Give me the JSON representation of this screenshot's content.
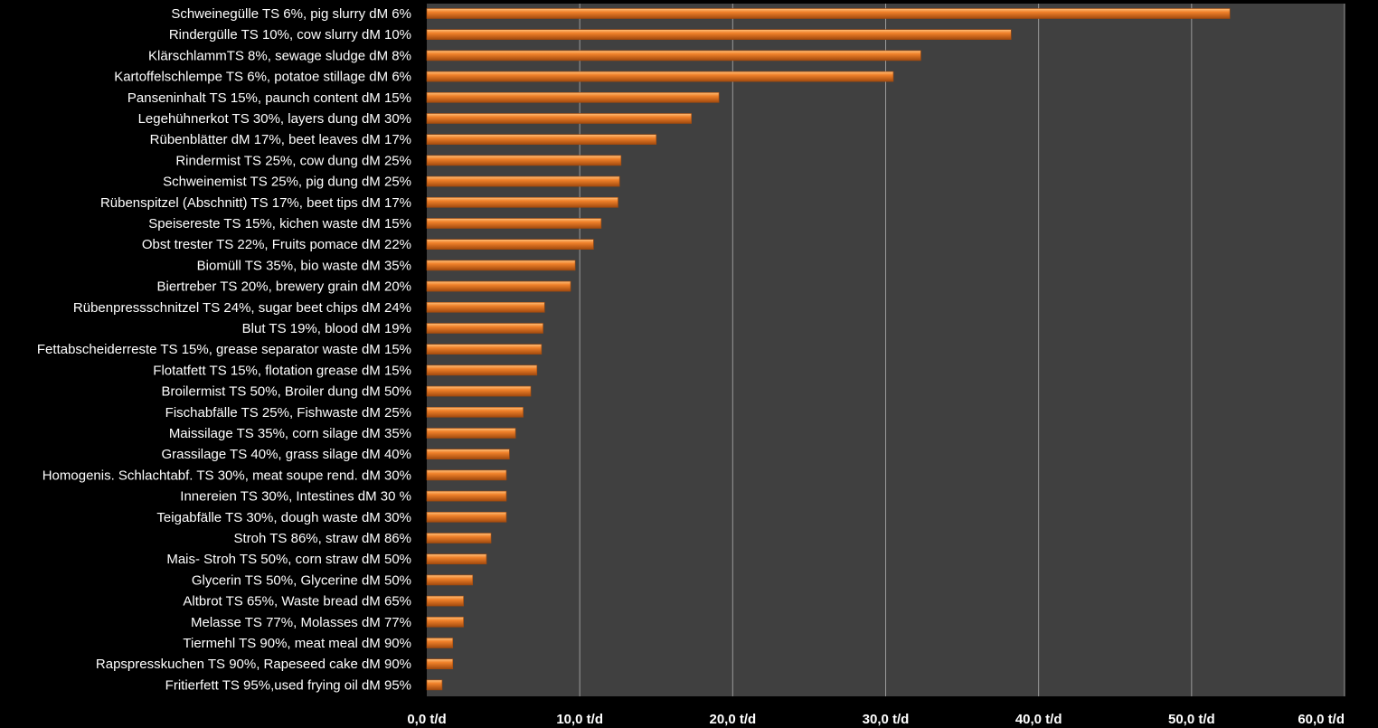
{
  "colors": {
    "background": "#000000",
    "plot_area": "#404040",
    "gridline": "#9a9a9a",
    "bar": "#f0812a",
    "bar_highlight": "#ffc07a",
    "bar_shadow": "#a24a0e",
    "text": "#ffffff"
  },
  "chart_data": {
    "type": "bar",
    "orientation": "horizontal",
    "title": "",
    "xlabel": "",
    "ylabel": "",
    "unit": "t/d",
    "xlim": [
      0,
      60
    ],
    "grid": true,
    "legend": "none",
    "x_ticks": [
      0,
      10,
      20,
      30,
      40,
      50,
      60
    ],
    "x_tick_labels": [
      "0,0 t/d",
      "10,0 t/d",
      "20,0 t/d",
      "30,0 t/d",
      "40,0 t/d",
      "50,0 t/d",
      "60,0 t/d"
    ],
    "categories": [
      "Schweinegülle TS 6%, pig slurry dM 6%",
      "Rindergülle TS 10%, cow slurry dM 10%",
      "KlärschlammTS 8%, sewage sludge dM 8%",
      "Kartoffelschlempe TS 6%, potatoe stillage dM 6%",
      "Panseninhalt TS 15%, paunch content dM 15%",
      "Legehühnerkot TS 30%, layers dung dM 30%",
      "Rübenblätter dM 17%, beet leaves dM 17%",
      "Rindermist TS 25%, cow dung dM 25%",
      "Schweinemist TS 25%, pig dung dM 25%",
      "Rübenspitzel (Abschnitt) TS 17%, beet tips dM 17%",
      "Speisereste TS 15%, kichen waste dM 15%",
      "Obst trester TS 22%, Fruits pomace dM 22%",
      "Biomüll TS 35%, bio waste dM 35%",
      "Biertreber TS 20%, brewery grain dM 20%",
      "Rübenpressschnitzel TS 24%, sugar beet chips dM 24%",
      "Blut TS 19%, blood dM 19%",
      "Fettabscheiderreste TS 15%, grease separator waste dM 15%",
      "Flotatfett TS 15%, flotation grease dM 15%",
      "Broilermist TS 50%, Broiler dung dM 50%",
      "Fischabfälle TS 25%, Fishwaste dM 25%",
      "Maissilage TS 35%, corn silage dM 35%",
      "Grassilage TS 40%, grass silage dM 40%",
      "Homogenis. Schlachtabf. TS 30%, meat soupe rend. dM 30%",
      "Innereien TS 30%, Intestines dM 30 %",
      "Teigabfälle TS 30%, dough waste dM 30%",
      "Stroh TS 86%, straw dM 86%",
      "Mais- Stroh TS 50%, corn straw dM 50%",
      "Glycerin TS 50%, Glycerine dM 50%",
      "Altbrot TS 65%, Waste bread dM 65%",
      "Melasse TS 77%, Molasses dM 77%",
      "Tiermehl TS 90%, meat meal dM 90%",
      "Rapspresskuchen TS 90%, Rapeseed cake dM 90%",
      "Fritierfett TS 95%,used frying oil dM 95%"
    ],
    "values": [
      52.5,
      38.2,
      32.3,
      30.5,
      19.1,
      17.3,
      15.0,
      12.7,
      12.6,
      12.5,
      11.4,
      10.9,
      9.7,
      9.4,
      7.7,
      7.6,
      7.5,
      7.2,
      6.8,
      6.3,
      5.8,
      5.4,
      5.2,
      5.2,
      5.2,
      4.2,
      3.9,
      3.0,
      2.4,
      2.4,
      1.7,
      1.7,
      1.0
    ]
  }
}
